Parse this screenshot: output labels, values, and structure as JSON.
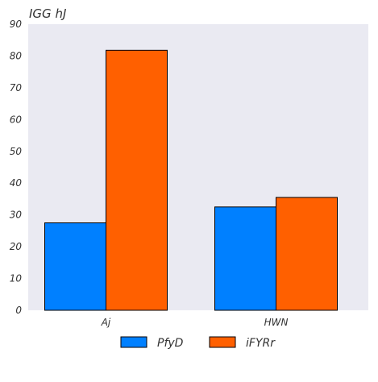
{
  "chart_data": {
    "type": "bar",
    "title": "IGG hJ",
    "xlabel": "",
    "ylabel": "",
    "categories": [
      "Aj",
      "HWN"
    ],
    "series": [
      {
        "name": "PfyD",
        "values": [
          27.5,
          32.5
        ],
        "color": "#0080ff"
      },
      {
        "name": "iFYRr",
        "values": [
          81.8,
          35.5
        ],
        "color": "#ff6000"
      }
    ],
    "ylim": [
      0,
      90
    ],
    "yticks": [
      0,
      10,
      20,
      30,
      40,
      50,
      60,
      70,
      80,
      90
    ],
    "grid": false,
    "legend_position": "bottom-center",
    "plot_background": "#eaeaf2"
  }
}
